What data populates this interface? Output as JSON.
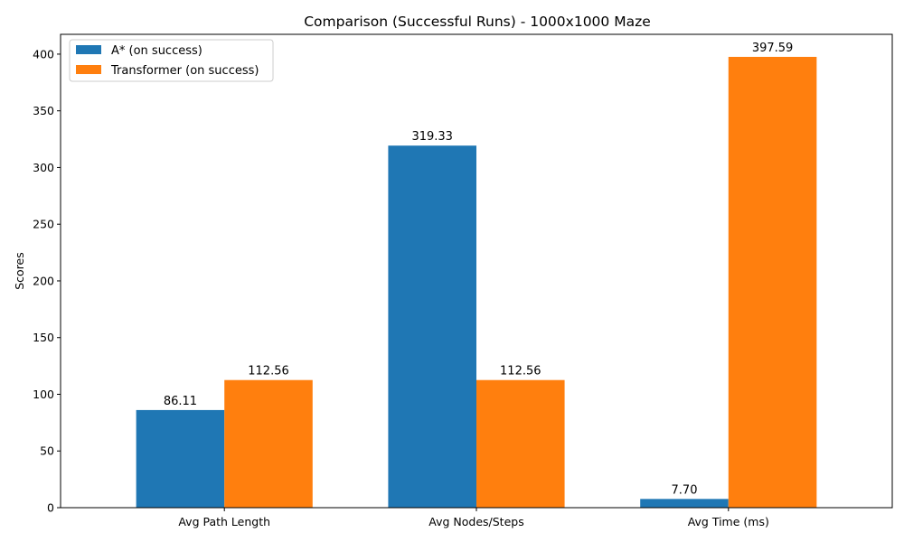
{
  "chart_data": {
    "type": "bar",
    "title": "Comparison (Successful Runs) - 1000x1000 Maze",
    "xlabel": "",
    "ylabel": "Scores",
    "categories": [
      "Avg Path Length",
      "Avg Nodes/Steps",
      "Avg Time (ms)"
    ],
    "series": [
      {
        "name": "A* (on success)",
        "color": "#1f77b4",
        "values": [
          86.11,
          319.33,
          7.7
        ],
        "labels": [
          "86.11",
          "319.33",
          "7.70"
        ]
      },
      {
        "name": "Transformer (on success)",
        "color": "#ff7f0e",
        "values": [
          112.56,
          112.56,
          397.59
        ],
        "labels": [
          "112.56",
          "112.56",
          "397.59"
        ]
      }
    ],
    "ylim": [
      0,
      417.47
    ],
    "yticks": [
      0,
      50,
      100,
      150,
      200,
      250,
      300,
      350,
      400
    ],
    "grid": false,
    "legend_position": "top-left"
  }
}
